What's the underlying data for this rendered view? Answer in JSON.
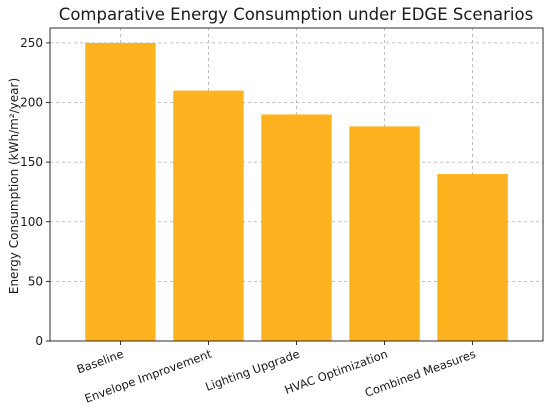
{
  "chart_data": {
    "type": "bar",
    "title": "Comparative Energy Consumption under EDGE Scenarios",
    "xlabel": "",
    "ylabel": "Energy Consumption (kWh/m²/year)",
    "categories": [
      "Baseline",
      "Envelope Improvement",
      "Lighting Upgrade",
      "HVAC Optimization",
      "Combined Measures"
    ],
    "values": [
      250,
      210,
      190,
      180,
      140
    ],
    "ylim": [
      0,
      262.5
    ],
    "yticks": [
      0,
      50,
      100,
      150,
      200,
      250
    ],
    "grid": true,
    "bar_color": "#FDB21F",
    "legend": "none"
  }
}
